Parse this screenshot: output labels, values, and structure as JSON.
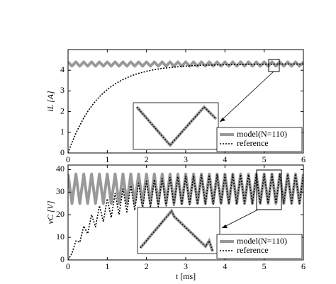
{
  "chart_data": [
    {
      "type": "line",
      "ylabel": "iL [A]",
      "xlim": [
        0,
        6
      ],
      "ylim": [
        0,
        5
      ],
      "xticks": [
        0,
        1,
        2,
        3,
        4,
        5,
        6
      ],
      "yticks": [
        0,
        1,
        2,
        3,
        4
      ],
      "legend": "lower right",
      "x": [
        0,
        0.1,
        0.2,
        0.3,
        0.4,
        0.5,
        0.6,
        0.7,
        0.8,
        0.9,
        1,
        1.1,
        1.2,
        1.3,
        1.4,
        1.5,
        1.6,
        1.7,
        1.8,
        1.9,
        2,
        2.1,
        2.2,
        2.3,
        2.4,
        2.5,
        2.6,
        2.7,
        2.8,
        2.9,
        3,
        3.1,
        3.2,
        3.3,
        3.4,
        3.5,
        3.6,
        3.7,
        3.8,
        3.9,
        4,
        4.1,
        4.2,
        4.3,
        4.4,
        4.5,
        4.6,
        4.7,
        4.8,
        4.9,
        5,
        5.1,
        5.2,
        5.3,
        5.4,
        5.5,
        5.6,
        5.7,
        5.8,
        5.9,
        6
      ],
      "series": [
        {
          "name": "model(N=110)",
          "color": "#999999",
          "linestyle": "solid",
          "values": [
            4.4,
            4.2,
            4.4,
            4.2,
            4.4,
            4.2,
            4.4,
            4.2,
            4.4,
            4.2,
            4.4,
            4.2,
            4.4,
            4.2,
            4.4,
            4.2,
            4.4,
            4.2,
            4.4,
            4.2,
            4.4,
            4.2,
            4.4,
            4.2,
            4.4,
            4.2,
            4.4,
            4.2,
            4.4,
            4.2,
            4.4,
            4.2,
            4.4,
            4.2,
            4.4,
            4.2,
            4.4,
            4.2,
            4.4,
            4.2,
            4.4,
            4.2,
            4.4,
            4.2,
            4.4,
            4.2,
            4.4,
            4.2,
            4.4,
            4.2,
            4.4,
            4.2,
            4.4,
            4.2,
            4.4,
            4.2,
            4.4,
            4.2,
            4.4,
            4.2,
            4.4
          ]
        },
        {
          "name": "reference",
          "color": "#000000",
          "linestyle": "dotted",
          "values": [
            0,
            0.51,
            0.95,
            1.34,
            1.69,
            2.0,
            2.27,
            2.51,
            2.72,
            2.9,
            3.07,
            3.21,
            3.34,
            3.45,
            3.55,
            3.64,
            3.72,
            3.79,
            3.85,
            3.9,
            3.95,
            3.99,
            4.03,
            4.06,
            4.09,
            4.11,
            4.13,
            4.15,
            4.17,
            4.19,
            4.2,
            4.21,
            4.22,
            4.23,
            4.24,
            4.25,
            4.25,
            4.25,
            4.26,
            4.26,
            4.27,
            4.27,
            4.28,
            4.28,
            4.28,
            4.28,
            4.29,
            4.29,
            4.29,
            4.29,
            4.29,
            4.29,
            4.29,
            4.3,
            4.3,
            4.3,
            4.3,
            4.3,
            4.3,
            4.3,
            4.3
          ]
        }
      ]
    },
    {
      "type": "line",
      "ylabel": "vC [V]",
      "xlabel": "t [ms]",
      "xlim": [
        0,
        6
      ],
      "ylim": [
        0,
        42
      ],
      "xticks": [
        0,
        1,
        2,
        3,
        4,
        5,
        6
      ],
      "yticks": [
        0,
        10,
        20,
        30,
        40
      ],
      "legend": "lower right",
      "x": [
        0,
        0.1,
        0.2,
        0.3,
        0.4,
        0.5,
        0.6,
        0.7,
        0.8,
        0.9,
        1,
        1.1,
        1.2,
        1.3,
        1.4,
        1.5,
        1.6,
        1.7,
        1.8,
        1.9,
        2,
        2.1,
        2.2,
        2.3,
        2.4,
        2.5,
        2.6,
        2.7,
        2.8,
        2.9,
        3,
        3.1,
        3.2,
        3.3,
        3.4,
        3.5,
        3.6,
        3.7,
        3.8,
        3.9,
        4,
        4.1,
        4.2,
        4.3,
        4.4,
        4.5,
        4.6,
        4.7,
        4.8,
        4.9,
        5,
        5.1,
        5.2,
        5.3,
        5.4,
        5.5,
        5.6,
        5.7,
        5.8,
        5.9,
        6
      ],
      "series": [
        {
          "name": "model(N=110)",
          "color": "#999999",
          "linestyle": "solid",
          "values": [
            38,
            25,
            38,
            25,
            38,
            25,
            38,
            25,
            38,
            25,
            38,
            25,
            38,
            25,
            38,
            25,
            38,
            25,
            38,
            25,
            38,
            25,
            38,
            25,
            38,
            25,
            38,
            25,
            38,
            25,
            38,
            25,
            38,
            25,
            38,
            25,
            38,
            25,
            38,
            25,
            38,
            25,
            38,
            25,
            38,
            25,
            38,
            25,
            38,
            25,
            38,
            25,
            38,
            25,
            38,
            25,
            38,
            25,
            38,
            25,
            38
          ]
        },
        {
          "name": "reference",
          "color": "#000000",
          "linestyle": "dotted",
          "values": [
            0,
            2.9,
            8.4,
            7.8,
            15.0,
            11.6,
            20.0,
            14.6,
            24.0,
            16.9,
            27.1,
            18.7,
            29.5,
            20.1,
            31.4,
            21.2,
            32.9,
            22.0,
            34.0,
            22.7,
            34.9,
            23.2,
            35.6,
            23.6,
            36.1,
            23.9,
            36.5,
            24.1,
            36.9,
            24.3,
            37.1,
            24.5,
            37.3,
            24.6,
            37.5,
            24.7,
            37.6,
            24.8,
            37.7,
            24.8,
            37.7,
            24.8,
            37.8,
            24.9,
            37.8,
            24.9,
            37.8,
            24.9,
            37.9,
            24.9,
            37.9,
            24.9,
            37.9,
            25,
            37.9,
            25,
            37.9,
            25,
            38,
            25,
            38
          ]
        }
      ]
    }
  ]
}
